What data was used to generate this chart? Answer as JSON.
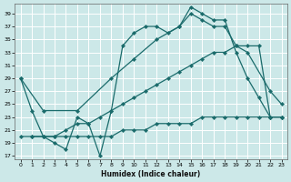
{
  "xlabel": "Humidex (Indice chaleur)",
  "bg_color": "#cce8e8",
  "line_color": "#1a6b6b",
  "grid_color": "#b0d4d4",
  "xlim": [
    -0.5,
    23.5
  ],
  "ylim": [
    16.5,
    40.5
  ],
  "yticks": [
    17,
    19,
    21,
    23,
    25,
    27,
    29,
    31,
    33,
    35,
    37,
    39
  ],
  "xticks": [
    0,
    1,
    2,
    3,
    4,
    5,
    6,
    7,
    8,
    9,
    10,
    11,
    12,
    13,
    14,
    15,
    16,
    17,
    18,
    19,
    20,
    21,
    22,
    23
  ],
  "series": [
    {
      "x": [
        0,
        1,
        2,
        3,
        4,
        5,
        6,
        7,
        8,
        9,
        10,
        11,
        12,
        13,
        14,
        15,
        16,
        17,
        18,
        19,
        20,
        21,
        22,
        23
      ],
      "y": [
        29,
        24,
        20,
        19,
        18,
        23,
        22,
        17,
        24,
        34,
        36,
        37,
        37,
        36,
        37,
        40,
        39,
        38,
        38,
        33,
        29,
        26,
        23,
        23
      ]
    },
    {
      "x": [
        0,
        2,
        5,
        8,
        10,
        12,
        14,
        15,
        16,
        17,
        18,
        19,
        20,
        22,
        23
      ],
      "y": [
        29,
        24,
        24,
        29,
        32,
        35,
        37,
        39,
        38,
        37,
        37,
        34,
        33,
        27,
        25
      ]
    },
    {
      "x": [
        1,
        2,
        3,
        4,
        5,
        6,
        7,
        8,
        9,
        10,
        11,
        12,
        13,
        14,
        15,
        16,
        17,
        18,
        19,
        20,
        21,
        22,
        23
      ],
      "y": [
        20,
        20,
        20,
        21,
        22,
        22,
        23,
        24,
        25,
        26,
        27,
        28,
        29,
        30,
        31,
        32,
        33,
        33,
        34,
        34,
        34,
        23,
        23
      ]
    },
    {
      "x": [
        0,
        1,
        2,
        3,
        4,
        5,
        6,
        7,
        8,
        9,
        10,
        11,
        12,
        13,
        14,
        15,
        16,
        17,
        18,
        19,
        20,
        21,
        22,
        23
      ],
      "y": [
        20,
        20,
        20,
        20,
        20,
        20,
        20,
        20,
        20,
        21,
        21,
        21,
        22,
        22,
        22,
        22,
        23,
        23,
        23,
        23,
        23,
        23,
        23,
        23
      ]
    }
  ]
}
